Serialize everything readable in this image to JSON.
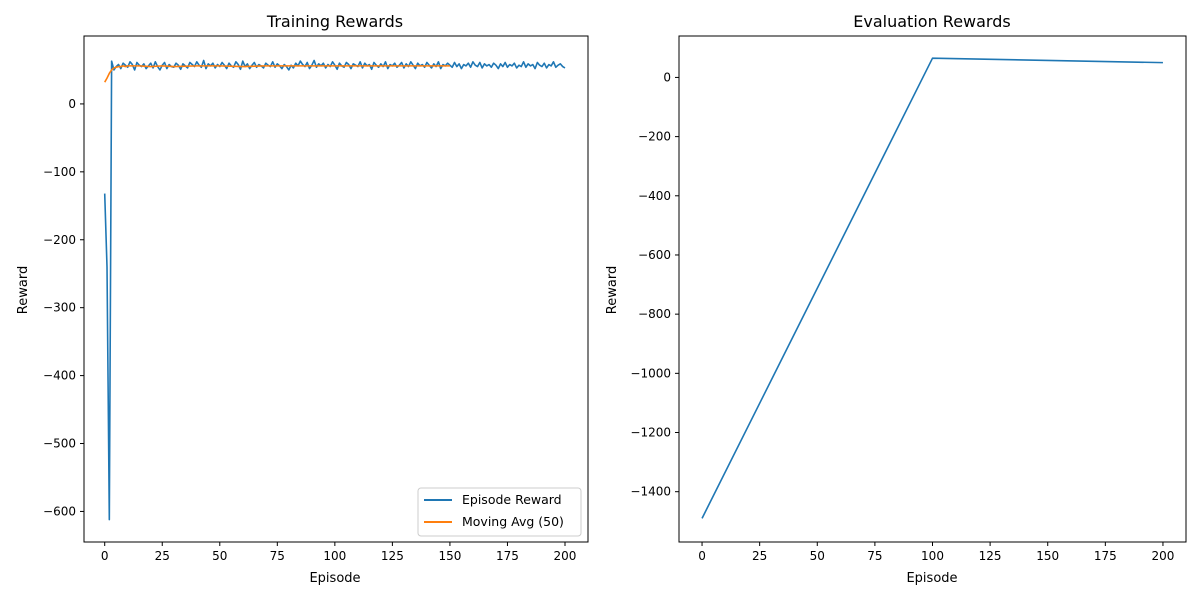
{
  "chart_data": [
    {
      "type": "line",
      "title": "Training Rewards",
      "xlabel": "Episode",
      "ylabel": "Reward",
      "xlim": [
        -9,
        210
      ],
      "ylim": [
        -645,
        100
      ],
      "xticks": [
        0,
        25,
        50,
        75,
        100,
        125,
        150,
        175,
        200
      ],
      "yticks": [
        -600,
        -500,
        -400,
        -300,
        -200,
        -100,
        0
      ],
      "legend": "lower-right",
      "grid": false,
      "series": [
        {
          "name": "Episode Reward",
          "color": "#1f77b4",
          "x": [
            0,
            1,
            2,
            3,
            4,
            5,
            6,
            7,
            8,
            9,
            10,
            11,
            12,
            13,
            14,
            15,
            16,
            17,
            18,
            19,
            20,
            21,
            22,
            23,
            24,
            25,
            26,
            27,
            28,
            29,
            30,
            31,
            32,
            33,
            34,
            35,
            36,
            37,
            38,
            39,
            40,
            41,
            42,
            43,
            44,
            45,
            46,
            47,
            48,
            49,
            50,
            51,
            52,
            53,
            54,
            55,
            56,
            57,
            58,
            59,
            60,
            61,
            62,
            63,
            64,
            65,
            66,
            67,
            68,
            69,
            70,
            71,
            72,
            73,
            74,
            75,
            76,
            77,
            78,
            79,
            80,
            81,
            82,
            83,
            84,
            85,
            86,
            87,
            88,
            89,
            90,
            91,
            92,
            93,
            94,
            95,
            96,
            97,
            98,
            99,
            100,
            101,
            102,
            103,
            104,
            105,
            106,
            107,
            108,
            109,
            110,
            111,
            112,
            113,
            114,
            115,
            116,
            117,
            118,
            119,
            120,
            121,
            122,
            123,
            124,
            125,
            126,
            127,
            128,
            129,
            130,
            131,
            132,
            133,
            134,
            135,
            136,
            137,
            138,
            139,
            140,
            141,
            142,
            143,
            144,
            145,
            146,
            147,
            148,
            149,
            150,
            151,
            152,
            153,
            154,
            155,
            156,
            157,
            158,
            159,
            160,
            161,
            162,
            163,
            164,
            165,
            166,
            167,
            168,
            169,
            170,
            171,
            172,
            173,
            174,
            175,
            176,
            177,
            178,
            179,
            180,
            181,
            182,
            183,
            184,
            185,
            186,
            187,
            188,
            189,
            190,
            191,
            192,
            193,
            194,
            195,
            196,
            197,
            198,
            199,
            200
          ],
          "values": [
            -132,
            -240,
            -612,
            63,
            50,
            55,
            58,
            52,
            60,
            57,
            54,
            62,
            58,
            50,
            61,
            57,
            55,
            59,
            52,
            56,
            60,
            53,
            62,
            55,
            50,
            57,
            61,
            52,
            58,
            55,
            54,
            60,
            57,
            51,
            59,
            56,
            53,
            61,
            58,
            55,
            62,
            57,
            54,
            64,
            52,
            59,
            56,
            60,
            53,
            58,
            55,
            61,
            57,
            52,
            60,
            56,
            54,
            62,
            58,
            51,
            63,
            55,
            59,
            52,
            57,
            61,
            54,
            58,
            56,
            53,
            60,
            57,
            55,
            62,
            54,
            59,
            56,
            52,
            58,
            55,
            50,
            57,
            53,
            60,
            56,
            63,
            58,
            55,
            61,
            52,
            57,
            64,
            54,
            59,
            56,
            60,
            53,
            58,
            55,
            62,
            57,
            51,
            60,
            56,
            54,
            61,
            58,
            52,
            59,
            57,
            55,
            62,
            53,
            60,
            56,
            58,
            51,
            61,
            57,
            54,
            59,
            55,
            62,
            52,
            58,
            56,
            60,
            54,
            57,
            61,
            53,
            59,
            55,
            62,
            57,
            52,
            60,
            56,
            58,
            54,
            61,
            57,
            53,
            59,
            55,
            62,
            52,
            58,
            56,
            60,
            57,
            54,
            61,
            55,
            59,
            52,
            58,
            56,
            60,
            54,
            62,
            57,
            55,
            61,
            53,
            59,
            56,
            58,
            54,
            60,
            57,
            52,
            59,
            55,
            61,
            54,
            58,
            56,
            60,
            53,
            57,
            55,
            62,
            54,
            59,
            56,
            58,
            52,
            61,
            57,
            55,
            60,
            53,
            58,
            56,
            62,
            54,
            57,
            59,
            55,
            53
          ]
        },
        {
          "name": "Moving Avg (50)",
          "color": "#ff7f0e",
          "x": [
            0,
            1,
            2,
            3,
            4,
            5,
            6,
            7,
            8,
            9,
            10,
            15,
            20,
            25,
            30,
            40,
            50,
            60,
            70,
            80,
            90,
            100,
            110,
            120,
            130,
            140,
            150
          ],
          "values": [
            32,
            38,
            45,
            50,
            53,
            54,
            55,
            55,
            56,
            55,
            56,
            56,
            55,
            56,
            55,
            56,
            56,
            55,
            56,
            56,
            56,
            56,
            56,
            56,
            56,
            56,
            56
          ]
        }
      ]
    },
    {
      "type": "line",
      "title": "Evaluation Rewards",
      "xlabel": "Episode",
      "ylabel": "Reward",
      "xlim": [
        -10,
        210
      ],
      "ylim": [
        -1570,
        140
      ],
      "xticks": [
        0,
        25,
        50,
        75,
        100,
        125,
        150,
        175,
        200
      ],
      "yticks": [
        -1400,
        -1200,
        -1000,
        -800,
        -600,
        -400,
        -200,
        0
      ],
      "grid": false,
      "series": [
        {
          "color": "#1f77b4",
          "x": [
            0,
            100,
            200
          ],
          "values": [
            -1490,
            65,
            50
          ]
        }
      ]
    }
  ]
}
